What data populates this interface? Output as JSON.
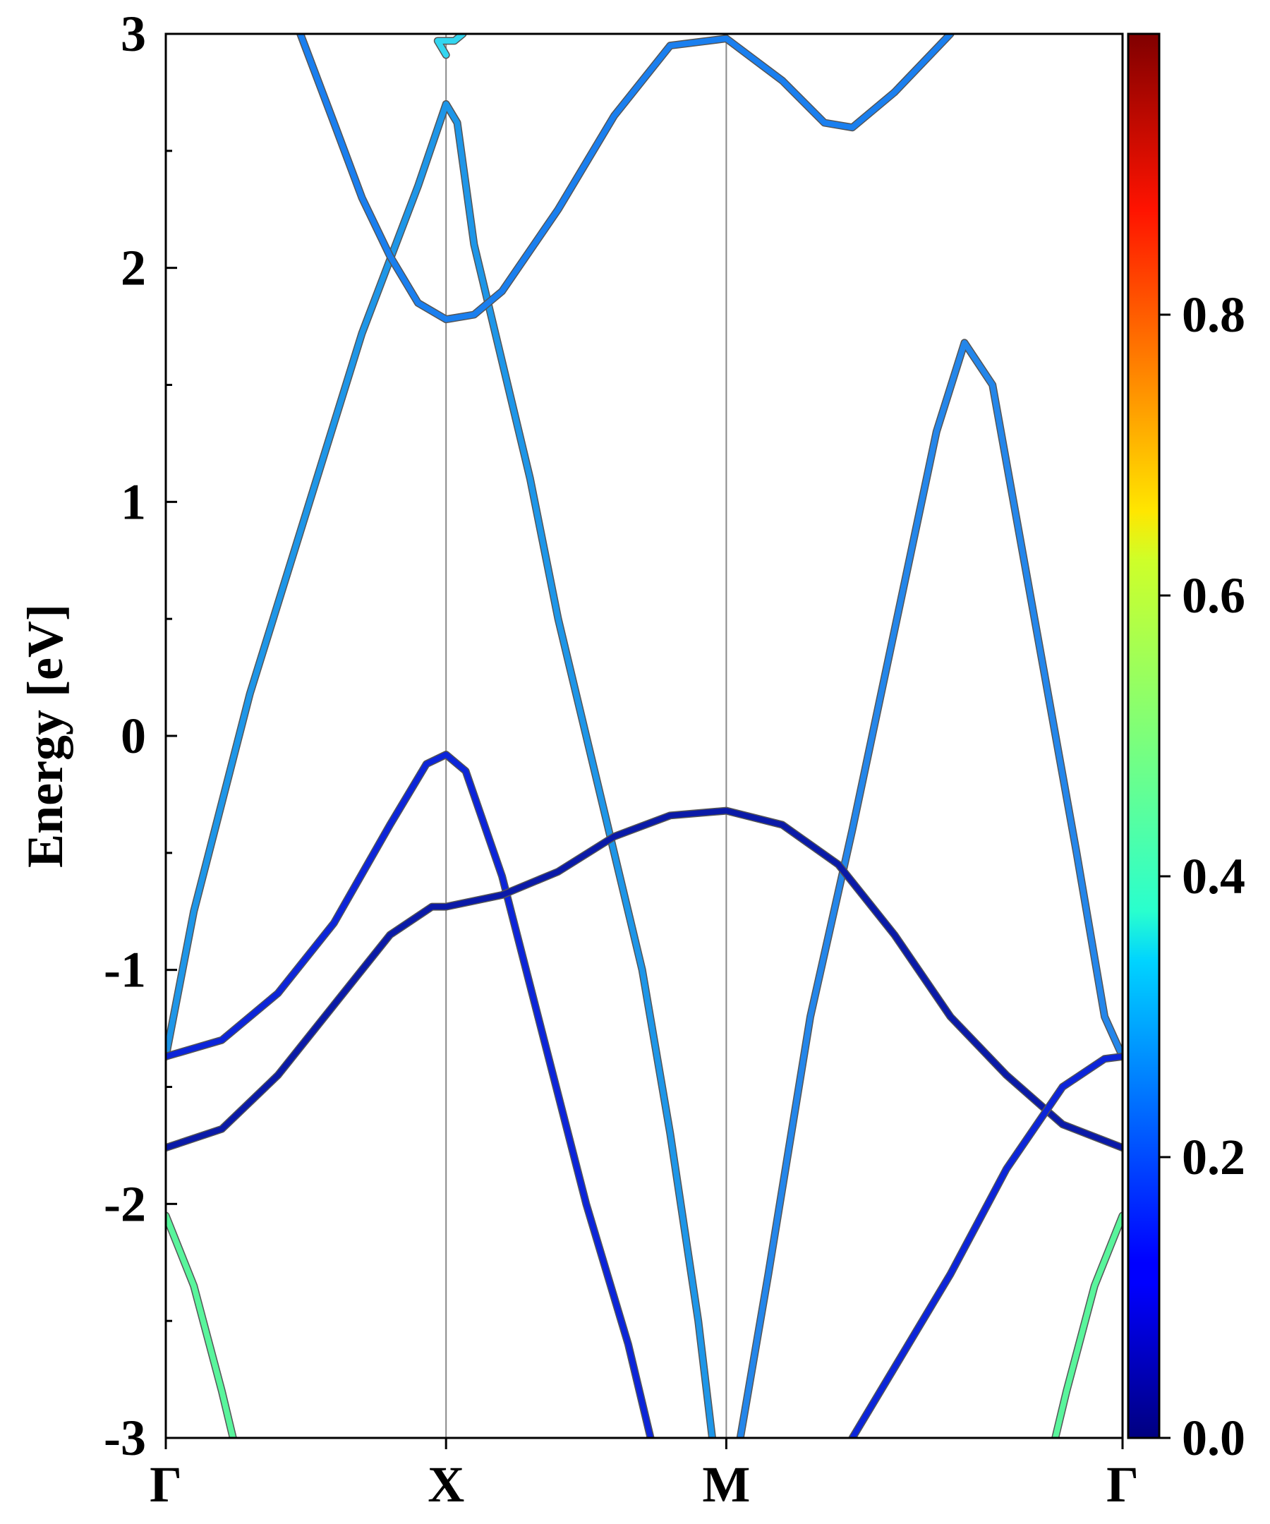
{
  "chart_data": {
    "type": "line",
    "title": "",
    "xlabel": "",
    "ylabel": "Energy [eV]",
    "ylim": [
      -3,
      3
    ],
    "y_ticks": [
      "-3",
      "-2",
      "-1",
      "0",
      "1",
      "2",
      "3"
    ],
    "x_ticks": [
      "Γ",
      "X",
      "M",
      "Γ"
    ],
    "x_tick_positions": [
      0,
      1,
      2,
      3.414
    ],
    "xlim": [
      0,
      3.414
    ],
    "grid": false,
    "vertical_lines_at": [
      1,
      2
    ],
    "colorbar": {
      "colormap": "jet",
      "range": [
        0,
        1
      ],
      "tick_values": [
        0.0,
        0.2,
        0.4,
        0.6,
        0.8
      ],
      "tick_labels": [
        "0.0",
        "0.2",
        "0.4",
        "0.6",
        "0.8"
      ]
    },
    "series": [
      {
        "weight": 0.52,
        "color": "#59f59c",
        "points": [
          [
            0.0,
            -2.05
          ],
          [
            0.1,
            -2.35
          ],
          [
            0.2,
            -2.8
          ],
          [
            0.24,
            -3.0
          ]
        ]
      },
      {
        "weight": 0.52,
        "color": "#59f59c",
        "points": [
          [
            3.414,
            -2.05
          ],
          [
            3.314,
            -2.35
          ],
          [
            3.214,
            -2.8
          ],
          [
            3.174,
            -3.0
          ]
        ]
      },
      {
        "weight": 0.25,
        "color": "#1e96e8",
        "points": [
          [
            0.0,
            -1.37
          ],
          [
            0.1,
            -0.75
          ],
          [
            0.3,
            0.18
          ],
          [
            0.5,
            0.95
          ],
          [
            0.7,
            1.72
          ],
          [
            0.9,
            2.35
          ],
          [
            1.0,
            2.7
          ],
          [
            1.04,
            2.62
          ],
          [
            1.1,
            2.1
          ],
          [
            1.2,
            1.6
          ],
          [
            1.3,
            1.1
          ],
          [
            1.4,
            0.5
          ],
          [
            1.5,
            0.0
          ],
          [
            1.6,
            -0.5
          ],
          [
            1.7,
            -1.0
          ],
          [
            1.8,
            -1.7
          ],
          [
            1.9,
            -2.5
          ],
          [
            1.95,
            -3.0
          ]
        ]
      },
      {
        "weight": 0.2,
        "color": "#1a7fef",
        "points": [
          [
            0.48,
            3.0
          ],
          [
            0.6,
            2.62
          ],
          [
            0.7,
            2.3
          ],
          [
            0.8,
            2.05
          ],
          [
            0.9,
            1.85
          ],
          [
            1.0,
            1.78
          ],
          [
            1.1,
            1.8
          ],
          [
            1.2,
            1.9
          ],
          [
            1.4,
            2.25
          ],
          [
            1.6,
            2.65
          ],
          [
            1.8,
            2.95
          ],
          [
            2.0,
            2.98
          ],
          [
            2.2,
            2.8
          ],
          [
            2.35,
            2.62
          ],
          [
            2.45,
            2.6
          ],
          [
            2.6,
            2.75
          ],
          [
            2.8,
            3.0
          ]
        ]
      },
      {
        "weight": 0.35,
        "color": "#33d6f0",
        "points": [
          [
            1.0,
            2.91
          ],
          [
            0.97,
            2.97
          ],
          [
            1.03,
            2.97
          ],
          [
            1.06,
            3.0
          ]
        ]
      },
      {
        "weight": 0.22,
        "color": "#2486ea",
        "points": [
          [
            2.05,
            -3.0
          ],
          [
            2.15,
            -2.3
          ],
          [
            2.3,
            -1.2
          ],
          [
            2.45,
            -0.4
          ],
          [
            2.6,
            0.45
          ],
          [
            2.75,
            1.3
          ],
          [
            2.85,
            1.68
          ],
          [
            2.95,
            1.5
          ],
          [
            3.1,
            0.5
          ],
          [
            3.25,
            -0.5
          ],
          [
            3.35,
            -1.2
          ],
          [
            3.414,
            -1.37
          ]
        ]
      },
      {
        "weight": 0.12,
        "color": "#0c25d9",
        "points": [
          [
            0.0,
            -1.37
          ],
          [
            0.2,
            -1.3
          ],
          [
            0.4,
            -1.1
          ],
          [
            0.6,
            -0.8
          ],
          [
            0.8,
            -0.38
          ],
          [
            0.93,
            -0.12
          ],
          [
            1.0,
            -0.08
          ],
          [
            1.07,
            -0.15
          ],
          [
            1.2,
            -0.6
          ],
          [
            1.35,
            -1.3
          ],
          [
            1.5,
            -2.0
          ],
          [
            1.65,
            -2.6
          ],
          [
            1.73,
            -3.0
          ]
        ]
      },
      {
        "weight": 0.08,
        "color": "#0a1aa8",
        "points": [
          [
            0.0,
            -1.76
          ],
          [
            0.2,
            -1.68
          ],
          [
            0.4,
            -1.45
          ],
          [
            0.6,
            -1.15
          ],
          [
            0.8,
            -0.85
          ],
          [
            0.95,
            -0.73
          ],
          [
            1.0,
            -0.73
          ],
          [
            1.2,
            -0.68
          ],
          [
            1.4,
            -0.58
          ],
          [
            1.6,
            -0.43
          ],
          [
            1.8,
            -0.34
          ],
          [
            2.0,
            -0.32
          ],
          [
            2.2,
            -0.38
          ],
          [
            2.4,
            -0.55
          ],
          [
            2.6,
            -0.85
          ],
          [
            2.8,
            -1.2
          ],
          [
            3.0,
            -1.45
          ],
          [
            3.2,
            -1.66
          ],
          [
            3.414,
            -1.76
          ]
        ]
      },
      {
        "weight": 0.12,
        "color": "#0c25d9",
        "points": [
          [
            2.45,
            -3.0
          ],
          [
            2.6,
            -2.7
          ],
          [
            2.8,
            -2.3
          ],
          [
            3.0,
            -1.85
          ],
          [
            3.2,
            -1.5
          ],
          [
            3.35,
            -1.38
          ],
          [
            3.414,
            -1.37
          ]
        ]
      }
    ]
  }
}
